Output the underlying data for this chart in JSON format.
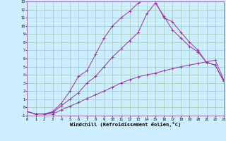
{
  "xlabel": "Windchill (Refroidissement éolien,°C)",
  "bg_color": "#cceeff",
  "grid_color": "#aaccbb",
  "line_color": "#993399",
  "spine_color": "#9966aa",
  "xlim": [
    0,
    23
  ],
  "ylim": [
    -1,
    13
  ],
  "xticks": [
    0,
    1,
    2,
    3,
    4,
    5,
    6,
    7,
    8,
    9,
    10,
    11,
    12,
    13,
    14,
    15,
    16,
    17,
    18,
    19,
    20,
    21,
    22,
    23
  ],
  "yticks": [
    -1,
    0,
    1,
    2,
    3,
    4,
    5,
    6,
    7,
    8,
    9,
    10,
    11,
    12,
    13
  ],
  "curve1_x": [
    0,
    1,
    2,
    3,
    4,
    5,
    6,
    7,
    8,
    9,
    10,
    11,
    12,
    13,
    14,
    15,
    16,
    17,
    18,
    19,
    20,
    21,
    22,
    23
  ],
  "curve1_y": [
    -0.5,
    -0.8,
    -0.8,
    -0.8,
    -0.3,
    0.15,
    0.6,
    1.1,
    1.55,
    2.0,
    2.5,
    3.0,
    3.4,
    3.75,
    4.0,
    4.2,
    4.5,
    4.75,
    5.0,
    5.2,
    5.4,
    5.6,
    5.8,
    3.4
  ],
  "curve2_x": [
    0,
    1,
    2,
    3,
    4,
    5,
    6,
    7,
    8,
    9,
    10,
    11,
    12,
    13,
    14,
    15,
    16,
    17,
    18,
    19,
    20,
    21,
    22,
    23
  ],
  "curve2_y": [
    -0.5,
    -0.8,
    -0.8,
    -0.6,
    0.2,
    1.0,
    1.8,
    3.0,
    3.8,
    5.0,
    6.2,
    7.2,
    8.2,
    9.2,
    11.5,
    12.8,
    11.2,
    9.5,
    8.5,
    7.5,
    6.8,
    5.5,
    5.2,
    3.2
  ],
  "curve3_x": [
    0,
    1,
    2,
    3,
    4,
    5,
    6,
    7,
    8,
    9,
    10,
    11,
    12,
    13,
    14,
    15,
    16,
    17,
    18,
    19,
    20,
    21,
    22,
    23
  ],
  "curve3_y": [
    -0.5,
    -0.8,
    -0.8,
    -0.5,
    0.5,
    2.0,
    3.8,
    4.5,
    6.5,
    8.5,
    10.0,
    11.0,
    11.8,
    12.8,
    13.2,
    13.0,
    11.0,
    10.5,
    9.2,
    8.0,
    7.0,
    5.5,
    5.2,
    3.2
  ]
}
